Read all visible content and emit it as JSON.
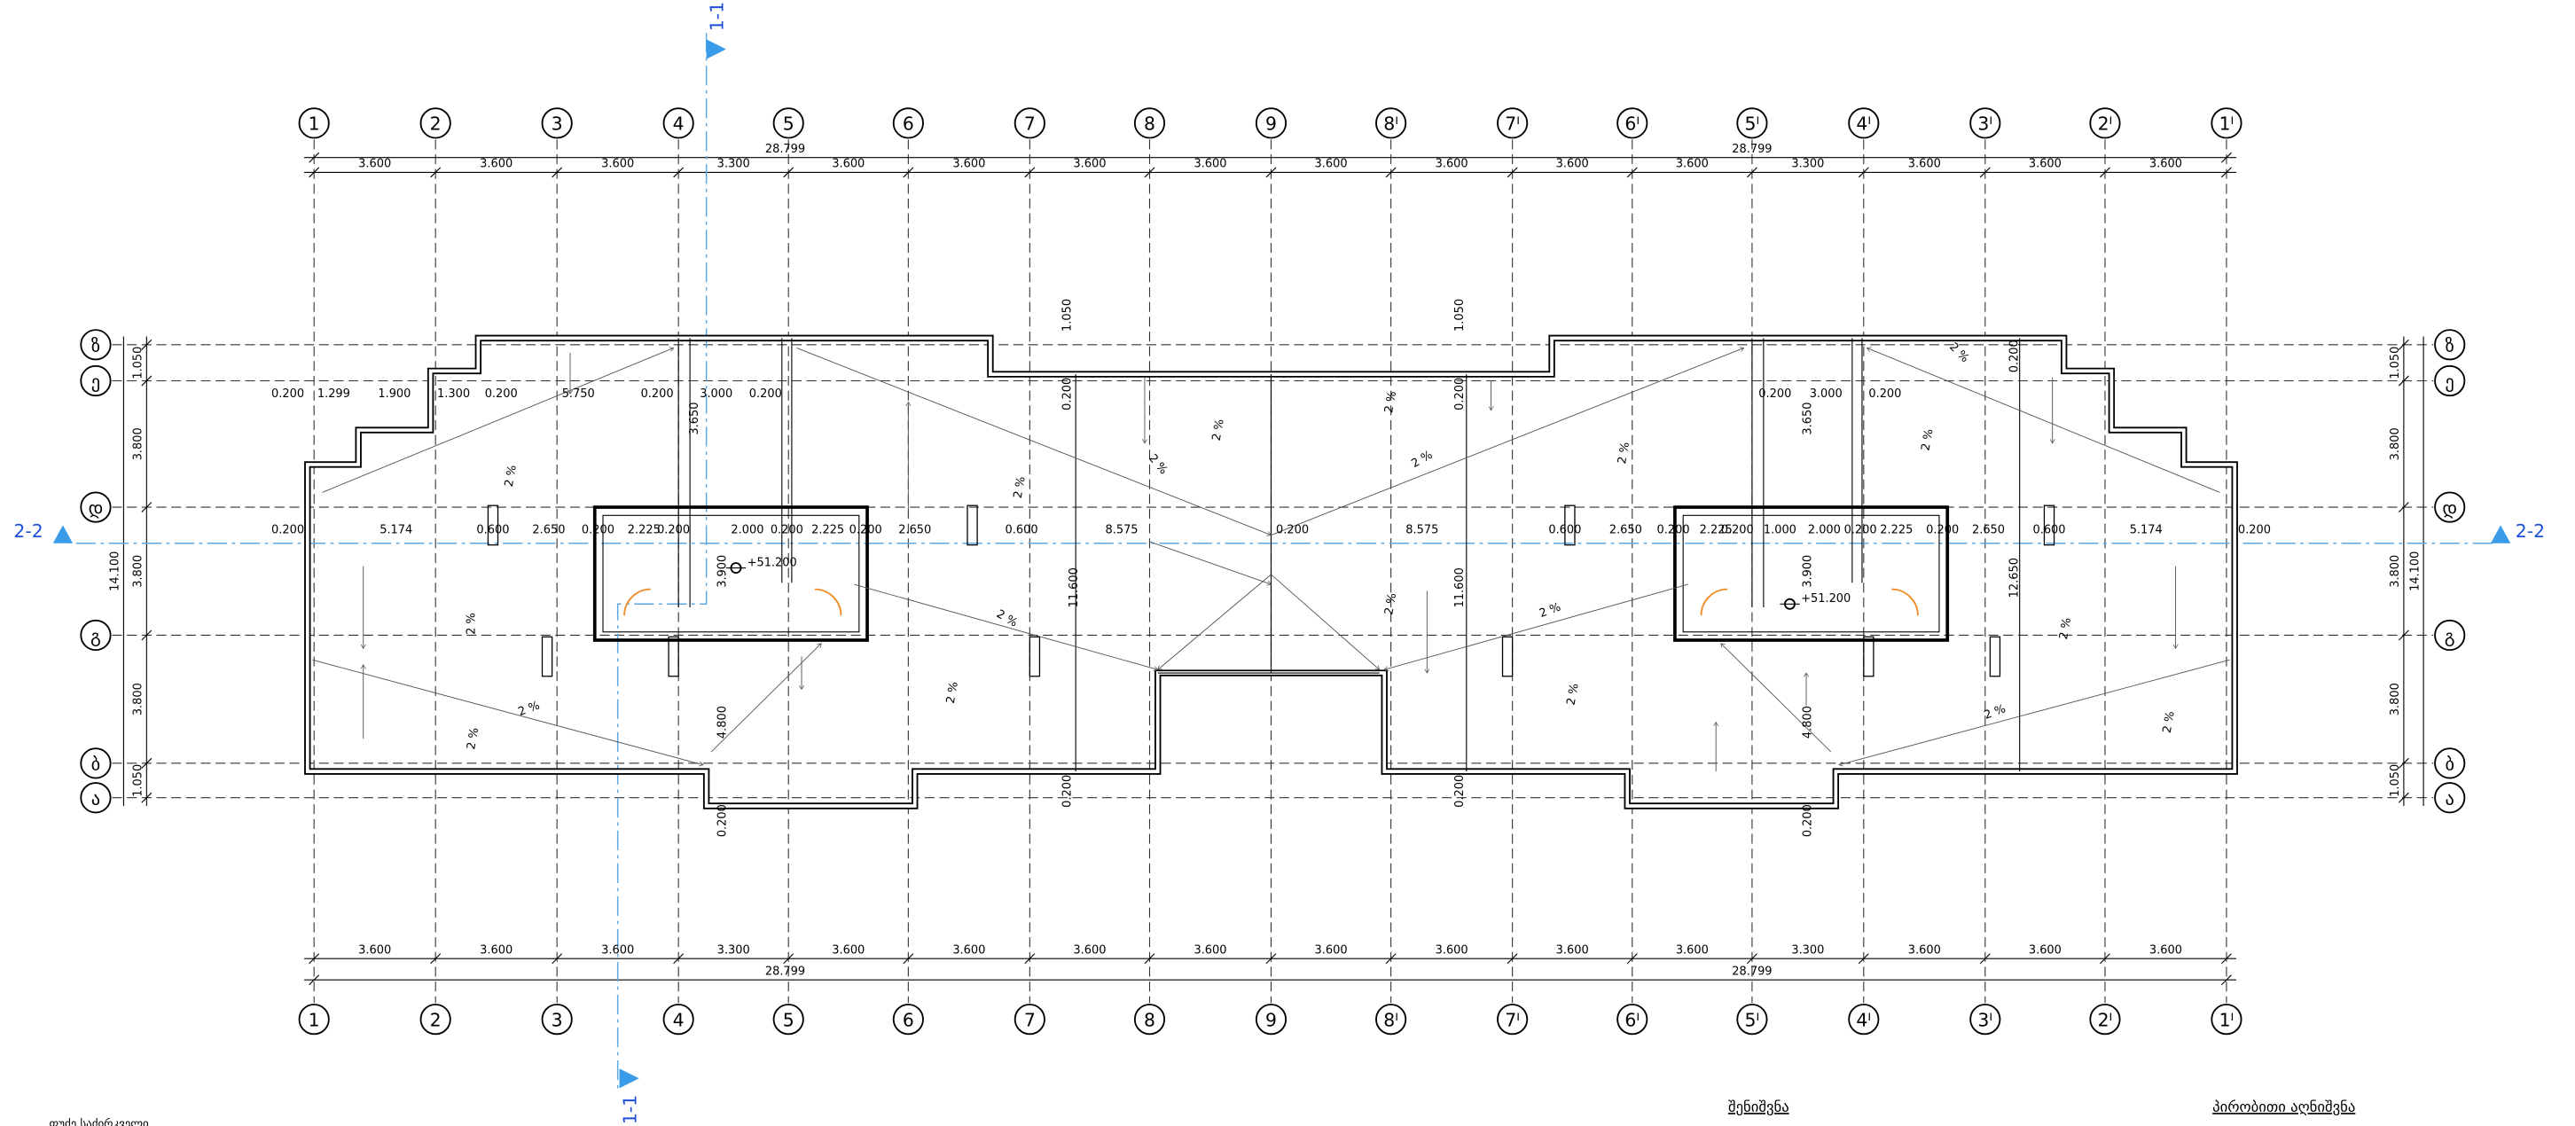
{
  "section_marks": {
    "vertical": "1-1",
    "horizontal": "2-2"
  },
  "column_axes": [
    "1",
    "2",
    "3",
    "4",
    "5",
    "6",
    "7",
    "8",
    "9",
    "8ᴵ",
    "7ᴵ",
    "6ᴵ",
    "5ᴵ",
    "4ᴵ",
    "3ᴵ",
    "2ᴵ",
    "1ᴵ"
  ],
  "row_axes": [
    "ზ",
    "ე",
    "დ",
    "გ",
    "ბ",
    "ა"
  ],
  "dimensions": {
    "top_totals": [
      "28.799",
      "28.799"
    ],
    "top_spans": [
      "3.600",
      "3.600",
      "3.600",
      "3.300",
      "3.600",
      "3.600",
      "3.600",
      "3.600",
      "3.600",
      "3.600",
      "3.600",
      "3.600",
      "3.300",
      "3.600",
      "3.600",
      "3.600"
    ],
    "bottom_spans": [
      "3.600",
      "3.600",
      "3.600",
      "3.300",
      "3.600",
      "3.600",
      "3.600",
      "3.600",
      "3.600",
      "3.600",
      "3.600",
      "3.600",
      "3.300",
      "3.600",
      "3.600",
      "3.600"
    ],
    "bottom_totals": [
      "28.799",
      "28.799"
    ],
    "row_spans": [
      "1.050",
      "3.800",
      "3.800",
      "3.800",
      "1.050"
    ],
    "row_total": "14.100",
    "upper_row": [
      "0.200",
      "1.299",
      "1.900",
      "1.300",
      "0.200",
      "5.750",
      "0.200",
      "3.000",
      "0.200",
      "0.200",
      "3.000",
      "0.200"
    ],
    "middle_row": [
      "0.200",
      "5.174",
      "0.600",
      "2.650",
      "0.200",
      "2.225",
      "0.200",
      "2.000",
      "0.200",
      "2.225",
      "0.200",
      "2.650",
      "0.600",
      "8.575",
      "0.200",
      "8.575",
      "0.600",
      "2.650",
      "0.200",
      "2.225",
      "0.200",
      "1.000",
      "2.000",
      "0.200",
      "2.225",
      "0.200",
      "2.650",
      "0.600",
      "5.174",
      "0.200"
    ],
    "vertical": [
      "11.600",
      "11.600",
      "12.650",
      "0.200",
      "0.200",
      "0.200",
      "0.200",
      "0.200",
      "0.200",
      "1.050",
      "1.050",
      "0.200",
      "3.650",
      "3.900",
      "4.800",
      "3.650",
      "3.900",
      "4.800"
    ]
  },
  "elevations": [
    "+51.200",
    "+51.200"
  ],
  "slopes": [
    "2 %",
    "2 %",
    "2 %",
    "2 %",
    "2 %",
    "2 %",
    "2 %",
    "2 %",
    "2 %",
    "2 %",
    "2 %",
    "2 %",
    "2 %",
    "2 %",
    "2 %",
    "2 %",
    "2 %",
    "2 %",
    "2 %",
    "2 %"
  ],
  "footer": {
    "left": "ფუძე საძირკველი",
    "notes": "შენიშვნა",
    "legend": "პირობითი აღნიშვნა"
  }
}
